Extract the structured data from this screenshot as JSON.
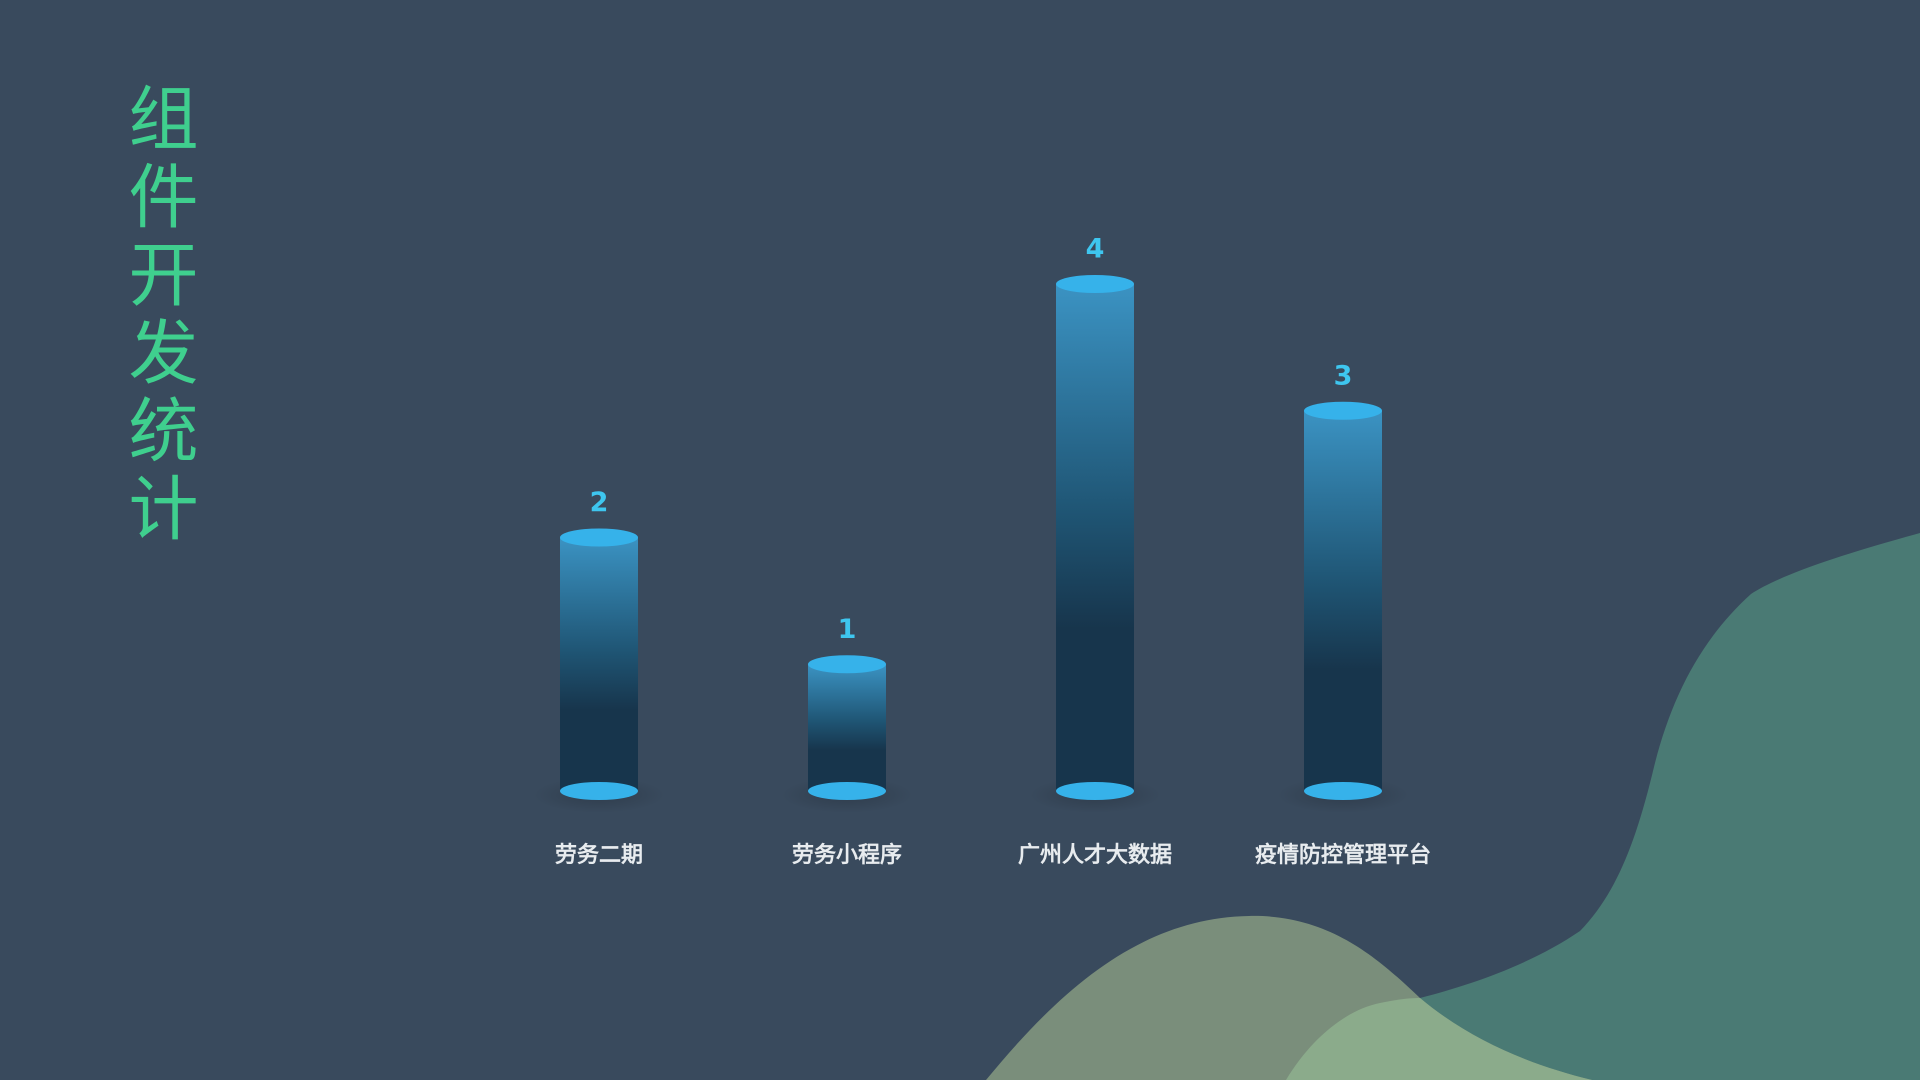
{
  "chart_data": {
    "type": "bar",
    "style": "cylinder",
    "title": "组件开发统计",
    "categories": [
      "劳务二期",
      "劳务小程序",
      "广州人才大数据",
      "疫情防控管理平台"
    ],
    "values": [
      2,
      1,
      4,
      3
    ],
    "ylim": [
      0,
      4
    ],
    "grid": false,
    "show_value_labels": true
  },
  "colors": {
    "background": "#394a5d",
    "title": "#3fcf8e",
    "bar_cap": "#36b2ea",
    "bar_top": "#3b93c3",
    "bar_mid": "#1f5574",
    "bar_bottom": "#17354c",
    "value_label": "#3ec6ef",
    "category_label": "#e8ecef",
    "wave_teal": "#4a7a74",
    "wave_olive": "#7d917c",
    "wave_light": "#8bab8b"
  }
}
